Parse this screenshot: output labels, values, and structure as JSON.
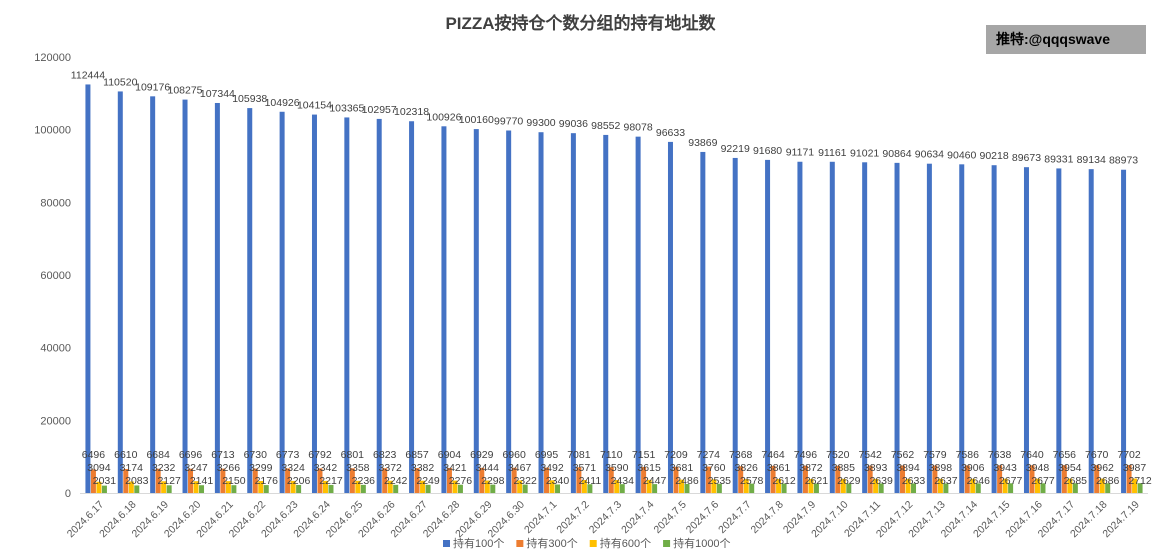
{
  "title": "PIZZA按持仓个数分组的持有地址数",
  "watermark": "推特:@qqqswave",
  "chart_data": {
    "type": "bar",
    "title": "PIZZA按持仓个数分组的持有地址数",
    "ylim": [
      0,
      120000
    ],
    "yticks": [
      0,
      20000,
      40000,
      60000,
      80000,
      100000,
      120000
    ],
    "grid": false,
    "legend_position": "bottom",
    "categories": [
      "2024.6.17",
      "2024.6.18",
      "2024.6.19",
      "2024.6.20",
      "2024.6.21",
      "2024.6.22",
      "2024.6.23",
      "2024.6.24",
      "2024.6.25",
      "2024.6.26",
      "2024.6.27",
      "2024.6.28",
      "2024.6.29",
      "2024.6.30",
      "2024.7.1",
      "2024.7.2",
      "2024.7.3",
      "2024.7.4",
      "2024.7.5",
      "2024.7.6",
      "2024.7.7",
      "2024.7.8",
      "2024.7.9",
      "2024.7.10",
      "2024.7.11",
      "2024.7.12",
      "2024.7.13",
      "2024.7.14",
      "2024.7.15",
      "2024.7.16",
      "2024.7.17",
      "2024.7.18",
      "2024.7.19"
    ],
    "series": [
      {
        "name": "持有100个",
        "color": "#4472c4",
        "values": [
          112444,
          110520,
          109176,
          108275,
          107344,
          105938,
          104926,
          104154,
          103365,
          102957,
          102318,
          100926,
          100160,
          99770,
          99300,
          99036,
          98552,
          98078,
          96633,
          93869,
          92219,
          91680,
          91171,
          91161,
          91021,
          90864,
          90634,
          90460,
          90218,
          89673,
          89331,
          89134,
          88973
        ]
      },
      {
        "name": "持有300个",
        "color": "#ed7d31",
        "values": [
          6496,
          6610,
          6684,
          6696,
          6713,
          6730,
          6773,
          6792,
          6801,
          6823,
          6857,
          6904,
          6929,
          6960,
          6995,
          7081,
          7110,
          7151,
          7209,
          7274,
          7368,
          7464,
          7496,
          7520,
          7542,
          7562,
          7579,
          7586,
          7638,
          7640,
          7656,
          7670,
          7702
        ]
      },
      {
        "name": "持有600个",
        "color": "#ffc000",
        "values": [
          3094,
          3174,
          3232,
          3247,
          3266,
          3299,
          3324,
          3342,
          3358,
          3372,
          3382,
          3421,
          3444,
          3467,
          3492,
          3571,
          3590,
          3615,
          3681,
          3760,
          3826,
          3861,
          3872,
          3885,
          3893,
          3894,
          3898,
          3906,
          3943,
          3948,
          3954,
          3962,
          3987
        ]
      },
      {
        "name": "持有1000个",
        "color": "#70ad47",
        "values": [
          2031,
          2083,
          2127,
          2141,
          2150,
          2176,
          2206,
          2217,
          2236,
          2242,
          2249,
          2276,
          2298,
          2322,
          2340,
          2411,
          2434,
          2447,
          2486,
          2535,
          2578,
          2612,
          2621,
          2629,
          2639,
          2633,
          2637,
          2646,
          2677,
          2677,
          2685,
          2686,
          2712
        ]
      }
    ]
  }
}
